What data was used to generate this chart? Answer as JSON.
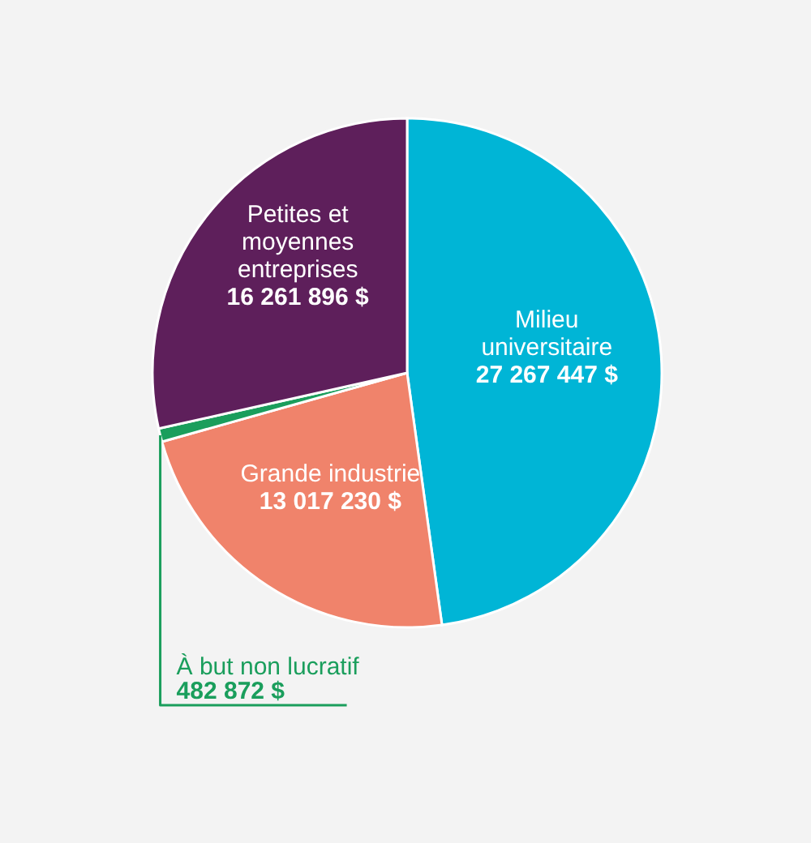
{
  "chart_data": {
    "type": "pie",
    "categories": [
      "Milieu universitaire",
      "Grande industrie",
      "À but non lucratif",
      "Petites et moyennes entreprises"
    ],
    "values": [
      27267447,
      13017230,
      482872,
      16261896
    ],
    "colors": [
      "#00b5d6",
      "#f0836b",
      "#1a9e5c",
      "#5e1f5b"
    ],
    "value_labels": [
      "27 267 447 $",
      "13 017 230 $",
      "482 872 $",
      "16 261 896 $"
    ]
  }
}
